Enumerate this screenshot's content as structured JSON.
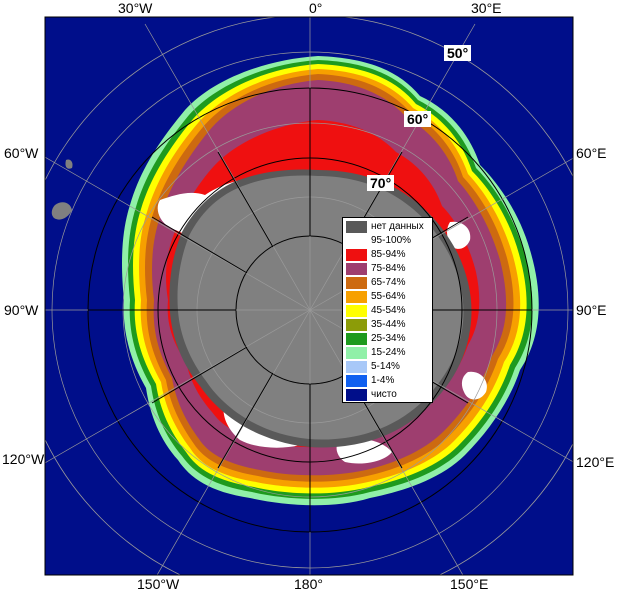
{
  "map": {
    "longitude_labels": {
      "top": [
        "30°W",
        "0°",
        "30°E"
      ],
      "bottom": [
        "150°W",
        "180°",
        "150°E"
      ],
      "left": [
        "60°W",
        "90°W",
        "120°W"
      ],
      "right": [
        "60°E",
        "90°E",
        "120°E"
      ]
    },
    "latitude_labels": [
      "50°",
      "60°",
      "70°"
    ],
    "colors": {
      "open_water": "#000e8a",
      "land": "#808080",
      "no_data": "#595959",
      "pack_95_100": "#ffffff",
      "conc_85_94": "#ef1010",
      "conc_75_84": "#9e3e6f"
    }
  },
  "legend": {
    "items": [
      {
        "label": "нет данных",
        "color": "#595959"
      },
      {
        "label": "95-100%",
        "color": "#ffffff"
      },
      {
        "label": "85-94%",
        "color": "#ef1010"
      },
      {
        "label": "75-84%",
        "color": "#9e3e6f"
      },
      {
        "label": "65-74%",
        "color": "#cd6a10"
      },
      {
        "label": "55-64%",
        "color": "#f7a000"
      },
      {
        "label": "45-54%",
        "color": "#ffff00"
      },
      {
        "label": "35-44%",
        "color": "#8c9c08"
      },
      {
        "label": "25-34%",
        "color": "#1e9a1e"
      },
      {
        "label": "15-24%",
        "color": "#90f0a8"
      },
      {
        "label": "5-14%",
        "color": "#a8c8f8"
      },
      {
        "label": "1-4%",
        "color": "#1060f0"
      },
      {
        "label": "чисто",
        "color": "#000e8a"
      }
    ]
  }
}
